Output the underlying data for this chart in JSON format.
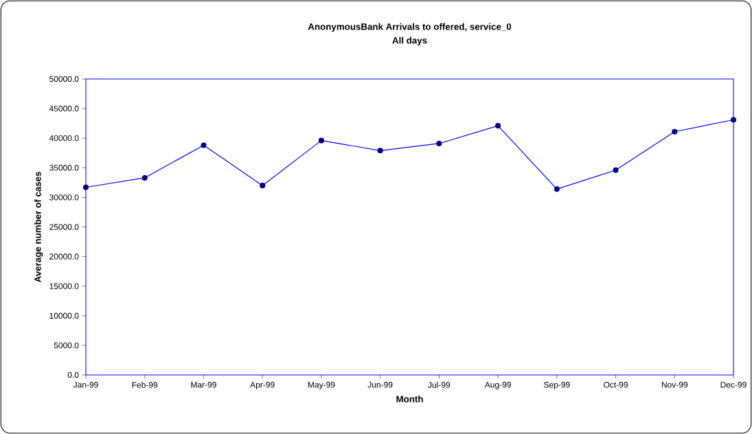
{
  "chart_data": {
    "type": "line",
    "title": "AnonymousBank Arrivals to offered, service_0",
    "subtitle": "All days",
    "xlabel": "Month",
    "ylabel": "Average number of cases",
    "categories": [
      "Jan-99",
      "Feb-99",
      "Mar-99",
      "Apr-99",
      "May-99",
      "Jun-99",
      "Jul-99",
      "Aug-99",
      "Sep-99",
      "Oct-99",
      "Nov-99",
      "Dec-99"
    ],
    "series": [
      {
        "color": "#0000ff",
        "values": [
          31700,
          33300,
          38800,
          32000,
          39600,
          37900,
          39100,
          42100,
          31400,
          34600,
          41100,
          43100
        ]
      }
    ],
    "ylim": [
      0,
      50000
    ],
    "yticks": [
      {
        "value": 0,
        "label": "0.0"
      },
      {
        "value": 5000,
        "label": "5000.0"
      },
      {
        "value": 10000,
        "label": "10000.0"
      },
      {
        "value": 15000,
        "label": "15000.0"
      },
      {
        "value": 20000,
        "label": "20000.0"
      },
      {
        "value": 25000,
        "label": "25000.0"
      },
      {
        "value": 30000,
        "label": "30000.0"
      },
      {
        "value": 35000,
        "label": "35000.0"
      },
      {
        "value": 40000,
        "label": "40000.0"
      },
      {
        "value": 45000,
        "label": "45000.0"
      },
      {
        "value": 50000,
        "label": "50000.0"
      }
    ],
    "marker": "circle",
    "line_style": "solid"
  }
}
